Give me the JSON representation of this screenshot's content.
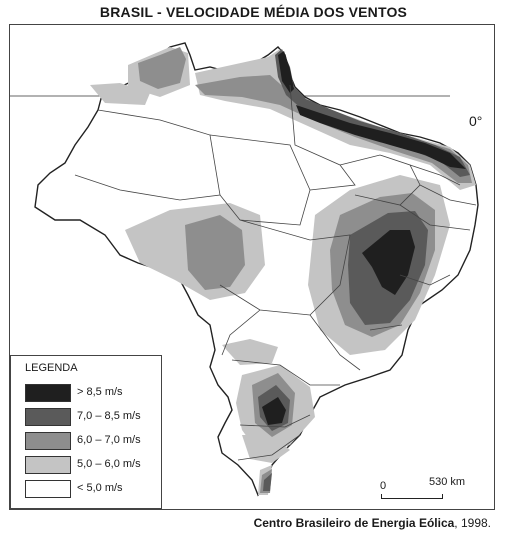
{
  "title": "BRASIL - VELOCIDADE MÉDIA DOS VENTOS",
  "equator_label": "0°",
  "legend": {
    "title": "LEGENDA",
    "items": [
      {
        "label": "> 8,5  m/s",
        "color": "#1f1f1f"
      },
      {
        "label": "7,0 – 8,5  m/s",
        "color": "#5a5a5a"
      },
      {
        "label": "6,0 – 7,0  m/s",
        "color": "#8e8e8e"
      },
      {
        "label": "5,0 – 6,0  m/s",
        "color": "#c4c4c4"
      },
      {
        "label": "< 5,0 m/s",
        "color": "#ffffff"
      }
    ]
  },
  "scale": {
    "zero": "0",
    "distance": "530 km"
  },
  "source": {
    "org": "Centro Brasileiro de Energia Eólica",
    "year": ", 1998."
  }
}
